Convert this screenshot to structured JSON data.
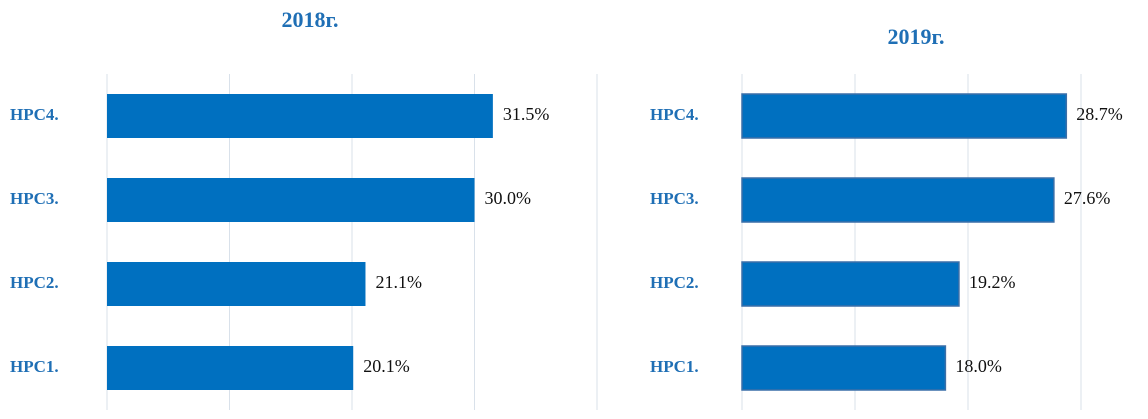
{
  "chart_data": [
    {
      "type": "barh",
      "title": "2018г.",
      "categories": [
        "HPC4.",
        "HPC3.",
        "HPC2.",
        "HPC1."
      ],
      "values": [
        31.5,
        30.0,
        21.1,
        20.1
      ],
      "value_labels": [
        "31.5%",
        "30.0%",
        "21.1%",
        "20.1%"
      ],
      "color": "#0070c0",
      "xlim": [
        0,
        40
      ],
      "xticks": [
        0,
        10,
        20,
        30,
        40
      ],
      "grid": true
    },
    {
      "type": "barh",
      "title": "2019г.",
      "categories": [
        "HPC4.",
        "HPC3.",
        "HPC2.",
        "HPC1."
      ],
      "values": [
        28.7,
        27.6,
        19.2,
        18.0
      ],
      "value_labels": [
        "28.7%",
        "27.6%",
        "19.2%",
        "18.0%"
      ],
      "color": "#0070c0",
      "xlim": [
        0,
        30
      ],
      "xticks": [
        0,
        10,
        20,
        30
      ],
      "grid": true
    }
  ]
}
